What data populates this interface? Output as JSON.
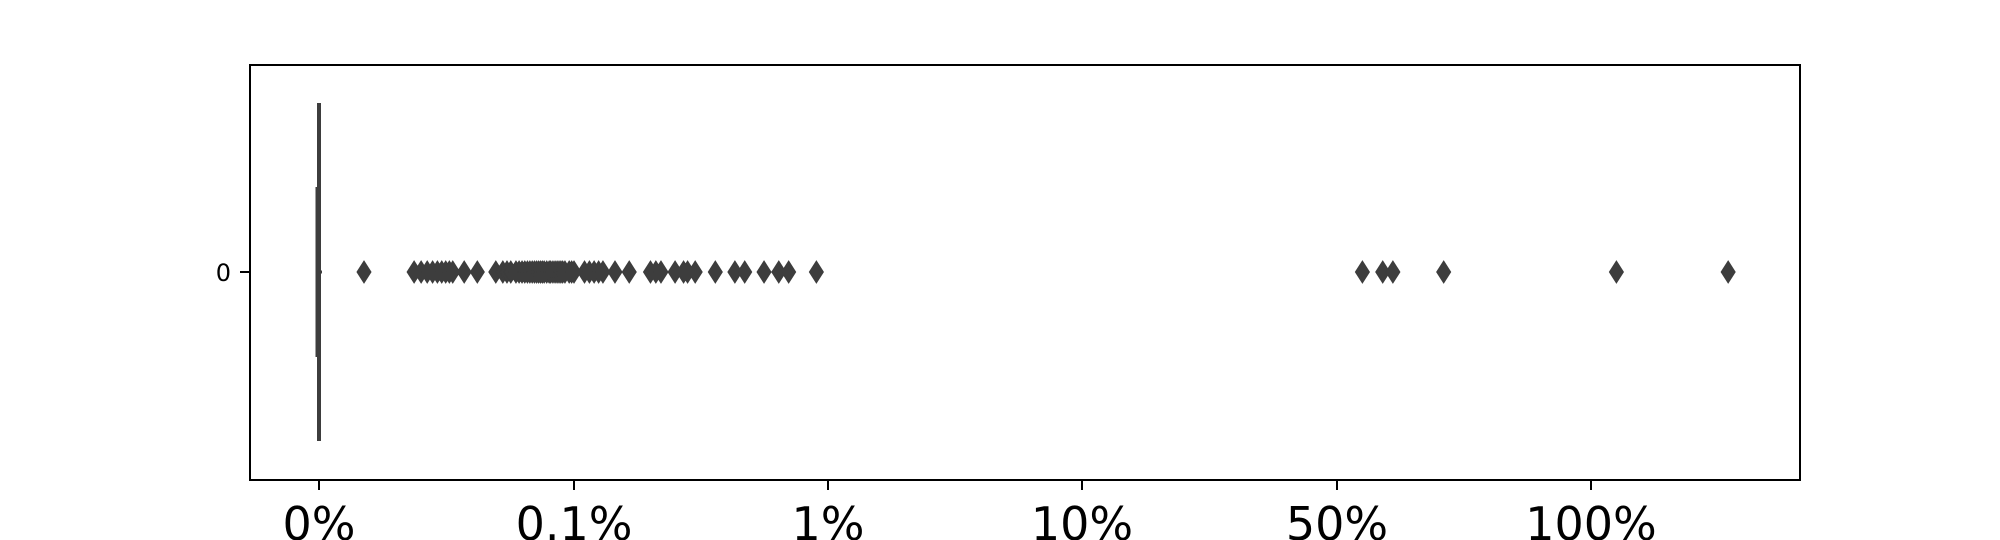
{
  "chart_data": {
    "type": "box",
    "orientation": "horizontal",
    "categories": [
      "0"
    ],
    "x_tick_labels": [
      "0%",
      "0.1%",
      "1%",
      "10%",
      "50%",
      "100%"
    ],
    "x_tick_values": [
      0,
      0.1,
      1,
      10,
      50,
      100
    ],
    "box": {
      "q1": 0,
      "median": 0,
      "q3": 0,
      "whisker_low": 0,
      "whisker_high": 0
    },
    "outliers": [
      0.001,
      0.003,
      0.0035,
      0.004,
      0.0045,
      0.005,
      0.0055,
      0.006,
      0.0065,
      0.007,
      0.009,
      0.012,
      0.018,
      0.021,
      0.023,
      0.025,
      0.028,
      0.03,
      0.032,
      0.034,
      0.036,
      0.038,
      0.04,
      0.042,
      0.044,
      0.046,
      0.048,
      0.05,
      0.052,
      0.055,
      0.058,
      0.06,
      0.063,
      0.066,
      0.069,
      0.072,
      0.075,
      0.078,
      0.082,
      0.09,
      0.095,
      0.1,
      0.11,
      0.115,
      0.12,
      0.125,
      0.13,
      0.145,
      0.165,
      0.2,
      0.21,
      0.22,
      0.25,
      0.27,
      0.28,
      0.3,
      0.36,
      0.43,
      0.47,
      0.56,
      0.64,
      0.7,
      0.9,
      55,
      59,
      61,
      71,
      105,
      127
    ],
    "grid": false,
    "legend": "none",
    "colors": {
      "marker": "#3d3d3d",
      "axis": "#000000"
    }
  }
}
